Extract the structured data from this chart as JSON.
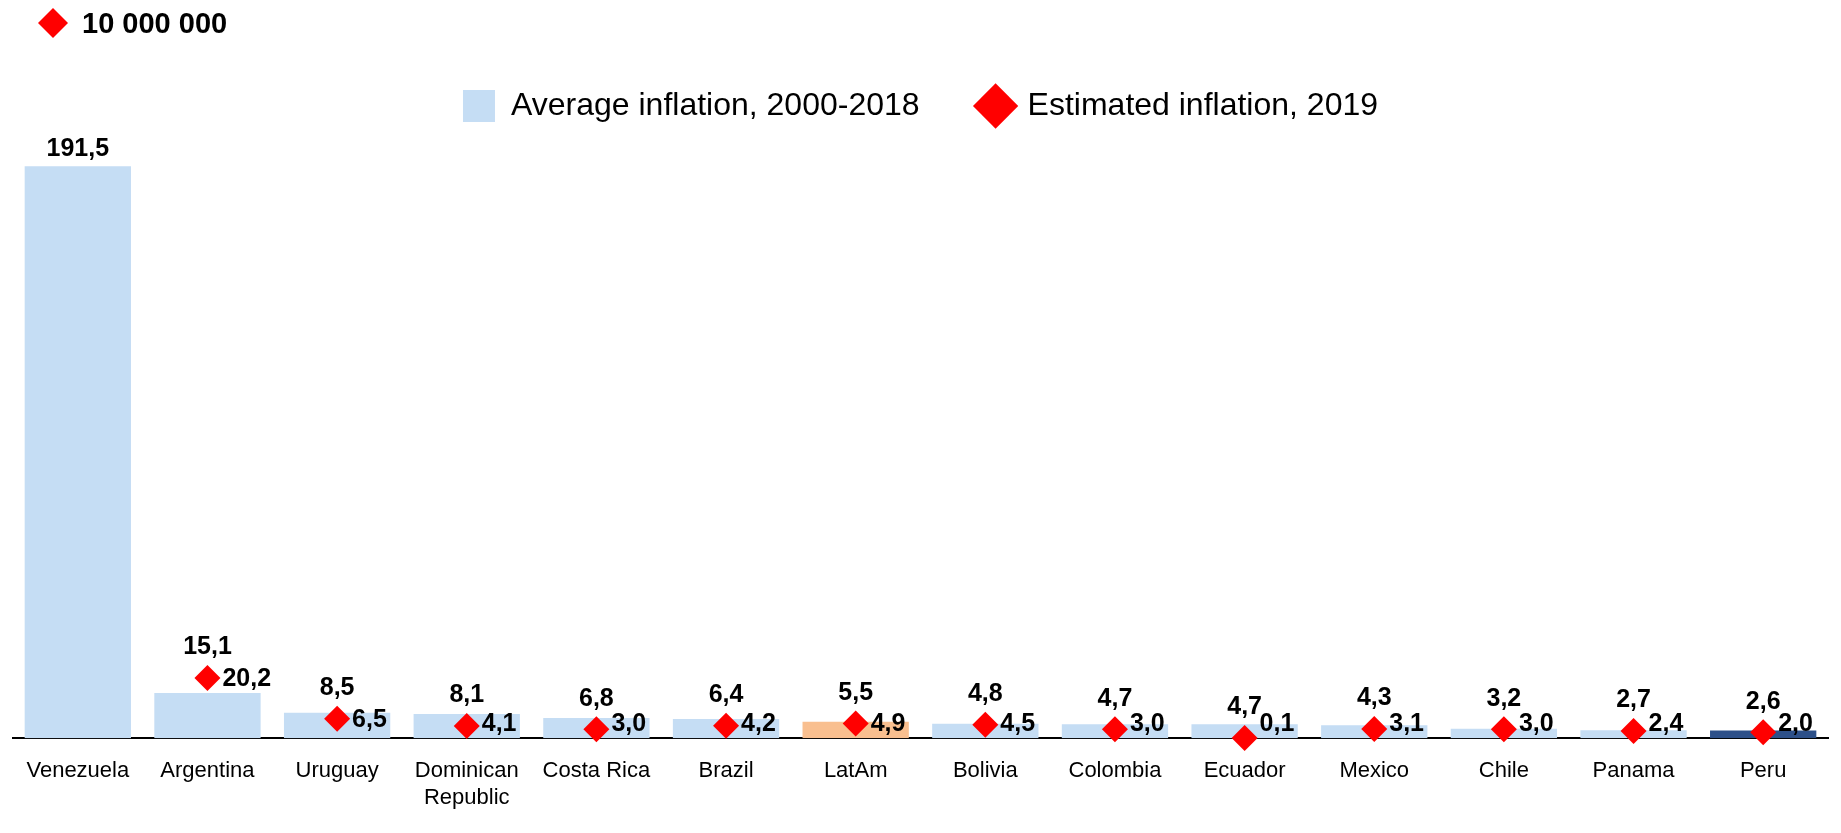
{
  "chart_data": {
    "type": "bar",
    "categories": [
      "Venezuela",
      "Argentina",
      "Uruguay",
      "Dominican Republic",
      "Costa Rica",
      "Brazil",
      "LatAm",
      "Bolivia",
      "Colombia",
      "Ecuador",
      "Mexico",
      "Chile",
      "Panama",
      "Peru"
    ],
    "series": [
      {
        "name": "Average inflation, 2000-2018",
        "color": "#c5ddf4",
        "colors": [
          "#c5ddf4",
          "#c5ddf4",
          "#c5ddf4",
          "#c5ddf4",
          "#c5ddf4",
          "#c5ddf4",
          "#f9bf8f",
          "#c5ddf4",
          "#c5ddf4",
          "#c5ddf4",
          "#c5ddf4",
          "#c5ddf4",
          "#c5ddf4",
          "#2d5089"
        ],
        "values": [
          191.5,
          15.1,
          8.5,
          8.1,
          6.8,
          6.4,
          5.5,
          4.8,
          4.7,
          4.7,
          4.3,
          3.2,
          2.7,
          2.6
        ],
        "value_labels": [
          "191,5",
          "15,1",
          "8,5",
          "8,1",
          "6,8",
          "6,4",
          "5,5",
          "4,8",
          "4,7",
          "4,7",
          "4,3",
          "3,2",
          "2,7",
          "2,6"
        ]
      },
      {
        "name": "Estimated inflation, 2019",
        "type": "scatter",
        "color": "#ff0000",
        "values": [
          null,
          20.2,
          6.5,
          4.1,
          3.0,
          4.2,
          4.9,
          4.5,
          3.0,
          0.1,
          3.1,
          3.0,
          2.4,
          2.0
        ],
        "value_labels": [
          null,
          "20,2",
          "6,5",
          "4,1",
          "3,0",
          "4,2",
          "4,9",
          "4,5",
          "3,0",
          "0,1",
          "3,1",
          "3,0",
          "2,4",
          "2,0"
        ]
      }
    ],
    "marker": "diamond",
    "legend": "top",
    "annotations": [
      "10 000 000"
    ]
  }
}
